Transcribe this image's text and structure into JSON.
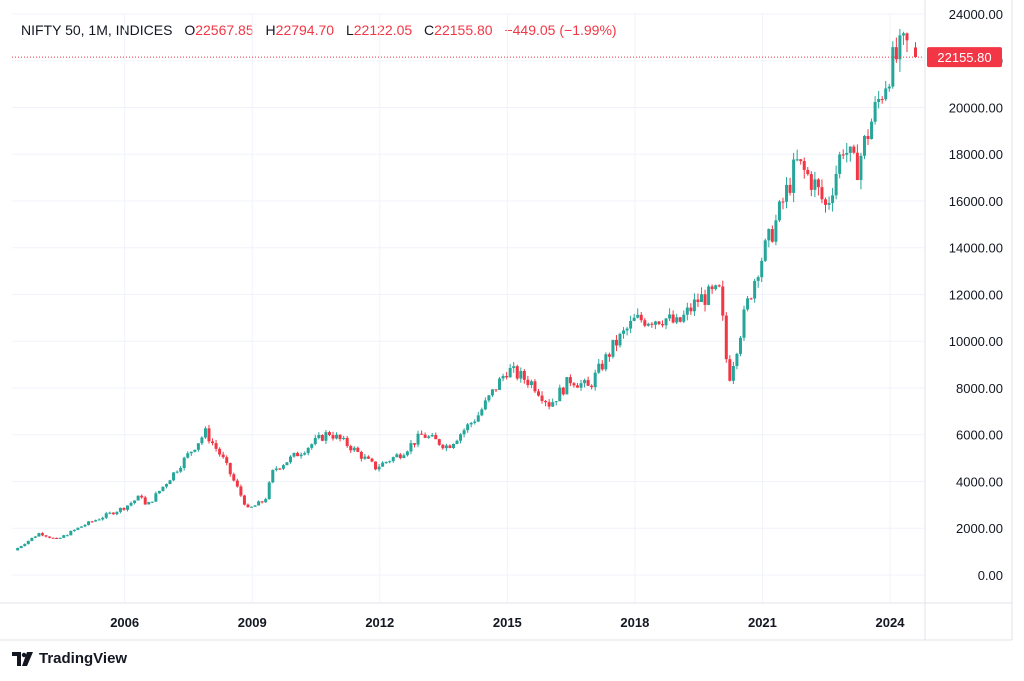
{
  "header": {
    "symbol": "NIFTY 50, 1M, INDICES",
    "o_label": "O",
    "o_value": "22567.85",
    "h_label": "H",
    "h_value": "22794.70",
    "l_label": "L",
    "l_value": "22122.05",
    "c_label": "C",
    "c_value": "22155.80",
    "change": "−449.05 (−1.99%)"
  },
  "price_label": "22155.80",
  "brand": {
    "name": "TradingView",
    "logo": "tradingview-logo-icon"
  },
  "colors": {
    "up": "#26a69a",
    "down": "#f23645",
    "grid": "#f0f3fa",
    "text": "#131722"
  },
  "chart_data": {
    "type": "candlestick",
    "interval": "1M",
    "title": "NIFTY 50, 1M, INDICES",
    "xlabel": "",
    "ylabel": "",
    "y_ticks": [
      "24000.00",
      "22000.00",
      "20000.00",
      "18000.00",
      "16000.00",
      "14000.00",
      "12000.00",
      "10000.00",
      "8000.00",
      "6000.00",
      "4000.00",
      "2000.00",
      "0.00"
    ],
    "y_tick_values": [
      24000,
      22000,
      20000,
      18000,
      16000,
      14000,
      12000,
      10000,
      8000,
      6000,
      4000,
      2000,
      0
    ],
    "x_ticks": [
      "2006",
      "2009",
      "2012",
      "2015",
      "2018",
      "2021",
      "2024"
    ],
    "x_tick_values": [
      2006,
      2009,
      2012,
      2015,
      2018,
      2021,
      2024
    ],
    "ylim": [
      -1200,
      24000
    ],
    "xlim": [
      2003.35,
      2024.8
    ],
    "grid": true,
    "current_price": 22155.8,
    "last_bar": {
      "open": 22567.85,
      "high": 22794.7,
      "low": 22122.05,
      "close": 22155.8
    },
    "trend_points": [
      [
        2003.4,
        1050
      ],
      [
        2004.0,
        1800
      ],
      [
        2004.4,
        1500
      ],
      [
        2005.0,
        2100
      ],
      [
        2006.0,
        2900
      ],
      [
        2006.4,
        3400
      ],
      [
        2006.5,
        2900
      ],
      [
        2007.0,
        4000
      ],
      [
        2007.9,
        6100
      ],
      [
        2008.3,
        5000
      ],
      [
        2008.9,
        2800
      ],
      [
        2009.3,
        3200
      ],
      [
        2009.5,
        4500
      ],
      [
        2010.0,
        5100
      ],
      [
        2010.8,
        6100
      ],
      [
        2011.3,
        5500
      ],
      [
        2011.9,
        4600
      ],
      [
        2012.5,
        5200
      ],
      [
        2013.0,
        6000
      ],
      [
        2013.6,
        5500
      ],
      [
        2014.3,
        6800
      ],
      [
        2015.0,
        8800
      ],
      [
        2015.6,
        8200
      ],
      [
        2016.0,
        7300
      ],
      [
        2016.5,
        8400
      ],
      [
        2016.9,
        8000
      ],
      [
        2017.5,
        9800
      ],
      [
        2018.0,
        10900
      ],
      [
        2018.7,
        11000
      ],
      [
        2019.0,
        10700
      ],
      [
        2019.5,
        11800
      ],
      [
        2020.0,
        12100
      ],
      [
        2020.2,
        8300
      ],
      [
        2020.6,
        11300
      ],
      [
        2020.9,
        13200
      ],
      [
        2021.3,
        15000
      ],
      [
        2021.8,
        17600
      ],
      [
        2022.2,
        16800
      ],
      [
        2022.5,
        15700
      ],
      [
        2022.9,
        18400
      ],
      [
        2023.2,
        17300
      ],
      [
        2023.6,
        19600
      ],
      [
        2024.0,
        21700
      ],
      [
        2024.3,
        22500
      ],
      [
        2024.4,
        22600
      ]
    ]
  }
}
